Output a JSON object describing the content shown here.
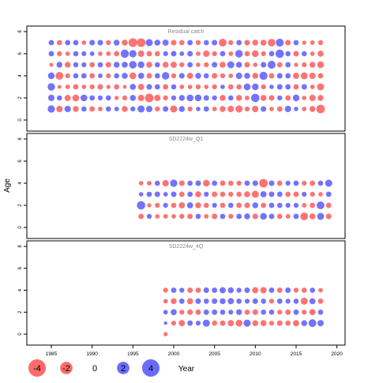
{
  "chart_data": {
    "type": "scatter",
    "ylabel": "Age",
    "xlabel": "Year",
    "xlim": [
      1982,
      2021
    ],
    "ylim": [
      -1,
      8.5
    ],
    "x_ticks": [
      1985,
      1990,
      1995,
      2000,
      2005,
      2010,
      2015,
      2020
    ],
    "y_ticks": [
      0,
      2,
      4,
      6,
      8
    ],
    "colors": {
      "positive": "#6b6bff",
      "negative": "#ff6b6b",
      "edge": "#555555"
    },
    "legend": {
      "position": "bottom-left",
      "entries": [
        {
          "label": "-4",
          "value": -4
        },
        {
          "label": "-2",
          "value": -2
        },
        {
          "label": "0",
          "value": 0
        },
        {
          "label": "2",
          "value": 2
        },
        {
          "label": "4",
          "value": 4
        }
      ],
      "title": "Year"
    },
    "panels": [
      {
        "title": "Residual catch",
        "years": [
          1985,
          1986,
          1987,
          1988,
          1989,
          1990,
          1991,
          1992,
          1993,
          1994,
          1995,
          1996,
          1997,
          1998,
          1999,
          2000,
          2001,
          2002,
          2003,
          2004,
          2005,
          2006,
          2007,
          2008,
          2009,
          2010,
          2011,
          2012,
          2013,
          2014,
          2015,
          2016,
          2017,
          2018
        ],
        "ages": [
          1,
          2,
          3,
          4,
          5,
          6,
          7
        ],
        "residuals": [
          [
            2.2,
            -1.7,
            1.7,
            -1.4,
            1.1,
            -1.2,
            -0.9,
            1.1,
            0.9,
            -1.4,
            1.0,
            2.1,
            1.7,
            -1.0,
            1.3,
            -2.0,
            1.4,
            -1.0,
            0.8,
            1.2,
            -0.9,
            -1.4,
            -1.7,
            -2.1,
            -1.0,
            -1.7,
            1.3,
            -0.8,
            -1.2,
            1.7,
            0.8,
            -0.9,
            -1.4,
            -3.0
          ],
          [
            1.7,
            1.1,
            -1.6,
            -1.9,
            1.9,
            1.2,
            1.0,
            1.1,
            -0.7,
            -1.0,
            1.5,
            -1.7,
            -3.0,
            -1.7,
            -1.0,
            1.0,
            1.4,
            1.9,
            1.8,
            1.3,
            1.0,
            -1.4,
            1.1,
            -1.4,
            -0.9,
            2.9,
            -1.5,
            -1.3,
            1.0,
            -1.2,
            1.8,
            -0.8,
            -1.7,
            -1.4
          ],
          [
            2.3,
            -0.6,
            -0.9,
            -1.2,
            -0.8,
            -1.0,
            -1.3,
            -0.7,
            -1.1,
            -0.6,
            1.5,
            -1.6,
            1.3,
            1.2,
            -1.2,
            1.1,
            -0.9,
            -0.8,
            -1.0,
            -0.8,
            -1.0,
            0.8,
            -1.1,
            -1.1,
            1.9,
            1.8,
            -1.0,
            0.8,
            1.3,
            1.2,
            -1.2,
            1.3,
            -0.9,
            -2.0
          ],
          [
            1.8,
            -2.5,
            -1.0,
            1.1,
            1.2,
            -1.2,
            0.9,
            -1.0,
            1.1,
            1.5,
            -1.8,
            1.6,
            -1.3,
            1.2,
            2.3,
            -1.0,
            1.3,
            -1.6,
            1.4,
            1.1,
            -1.3,
            -1.0,
            -0.9,
            1.7,
            1.5,
            -1.5,
            2.7,
            -1.2,
            1.3,
            1.2,
            -1.6,
            -2.0,
            -1.7,
            -1.2
          ],
          [
            -0.6,
            1.4,
            -1.4,
            1.1,
            1.0,
            -1.2,
            1.1,
            -1.3,
            1.4,
            1.5,
            2.4,
            1.8,
            -1.5,
            1.1,
            -1.4,
            -1.6,
            -1.0,
            1.2,
            -0.8,
            -1.0,
            1.3,
            -1.5,
            2.0,
            1.5,
            -1.2,
            -0.8,
            1.3,
            2.6,
            -1.1,
            1.2,
            -0.7,
            -1.0,
            -1.4,
            -1.8
          ],
          [
            1.2,
            -1.0,
            -0.8,
            1.1,
            1.0,
            0.9,
            -0.8,
            -0.9,
            -1.2,
            2.8,
            2.2,
            -1.7,
            -1.2,
            -1.1,
            1.0,
            1.3,
            0.9,
            1.3,
            -0.8,
            -1.7,
            -1.0,
            1.2,
            -0.9,
            2.4,
            -1.1,
            -1.8,
            -1.0,
            1.2,
            2.9,
            1.1,
            -1.3,
            1.1,
            -0.8,
            -1.5
          ],
          [
            1.2,
            -1.1,
            1.2,
            1.2,
            -0.8,
            1.3,
            1.3,
            -1.0,
            1.4,
            -1.5,
            -3.1,
            -3.0,
            2.1,
            1.5,
            1.6,
            -1.3,
            -1.1,
            1.2,
            -1.0,
            1.1,
            1.3,
            -2.5,
            -1.0,
            1.2,
            -1.3,
            -1.4,
            -1.5,
            -2.3,
            2.6,
            -1.3,
            1.1,
            -0.7,
            -0.9,
            -1.0
          ]
        ]
      },
      {
        "title": "SD2224w_Q1",
        "years": [
          1996,
          1997,
          1998,
          1999,
          2000,
          2001,
          2002,
          2003,
          2004,
          2005,
          2006,
          2007,
          2008,
          2009,
          2010,
          2011,
          2012,
          2013,
          2014,
          2015,
          2016,
          2017,
          2018,
          2019
        ],
        "ages": [
          1,
          2,
          3,
          4
        ],
        "residuals": [
          [
            -1.2,
            1.0,
            -0.8,
            -0.9,
            -0.8,
            -1.0,
            -1.2,
            1.1,
            -0.9,
            -1.3,
            1.1,
            -1.0,
            1.2,
            1.4,
            -1.3,
            1.8,
            1.2,
            -1.1,
            -0.9,
            1.2,
            -2.5,
            -1.5,
            2.0,
            -1.3
          ],
          [
            2.9,
            -0.7,
            -1.0,
            1.0,
            -1.1,
            -1.6,
            1.6,
            -1.4,
            -1.1,
            1.0,
            -1.1,
            1.1,
            -1.2,
            -1.3,
            1.4,
            -1.1,
            1.2,
            1.1,
            1.0,
            1.0,
            -0.9,
            -1.2,
            2.5,
            -1.2
          ],
          [
            0.8,
            1.1,
            1.3,
            0.9,
            1.3,
            -1.2,
            1.2,
            -1.5,
            1.0,
            -1.3,
            -1.1,
            -1.0,
            -1.1,
            -1.5,
            -2.1,
            1.6,
            1.3,
            1.2,
            -1.1,
            -1.2,
            1.0,
            -1.0,
            -0.8,
            1.2
          ],
          [
            -0.8,
            -0.9,
            1.1,
            -1.7,
            2.2,
            -1.3,
            1.1,
            1.3,
            -1.8,
            1.2,
            -1.2,
            -1.1,
            -1.0,
            1.2,
            1.3,
            -3.0,
            1.3,
            -1.1,
            1.0,
            1.2,
            -1.0,
            -1.2,
            1.1,
            2.1
          ]
        ]
      },
      {
        "title": "SD2224w_4Q",
        "years": [
          1999,
          2000,
          2001,
          2002,
          2003,
          2004,
          2005,
          2006,
          2007,
          2008,
          2009,
          2010,
          2011,
          2012,
          2013,
          2014,
          2015,
          2016,
          2017,
          2018
        ],
        "ages": [
          0,
          1,
          2,
          3,
          4
        ],
        "residuals": [
          [
            -0.7,
            null,
            null,
            null,
            null,
            null,
            null,
            null,
            null,
            null,
            null,
            null,
            null,
            null,
            null,
            null,
            null,
            null,
            null,
            null
          ],
          [
            0.5,
            -1.0,
            -1.6,
            1.2,
            1.0,
            2.1,
            -1.1,
            -1.2,
            -1.6,
            -1.9,
            2.1,
            -1.4,
            -1.5,
            -1.0,
            -1.3,
            -1.1,
            -1.6,
            1.4,
            2.5,
            1.7
          ],
          [
            0.9,
            1.5,
            -1.0,
            -1.3,
            -1.2,
            1.2,
            1.2,
            1.1,
            1.0,
            1.4,
            -1.1,
            -1.3,
            1.1,
            1.1,
            -1.0,
            -1.2,
            1.2,
            -1.0,
            -1.6,
            1.1
          ],
          [
            -0.8,
            -1.4,
            1.2,
            -1.5,
            1.3,
            1.1,
            1.3,
            1.4,
            1.6,
            1.1,
            1.0,
            1.3,
            1.1,
            -1.0,
            1.2,
            1.0,
            1.1,
            -2.0,
            1.5,
            -1.2
          ],
          [
            -1.0,
            1.2,
            1.0,
            -1.2,
            -1.1,
            1.3,
            1.2,
            1.6,
            1.4,
            1.0,
            1.3,
            -1.6,
            -1.7,
            1.2,
            -1.2,
            1.3,
            -1.0,
            -1.1,
            1.1,
            -0.8
          ]
        ]
      }
    ]
  }
}
